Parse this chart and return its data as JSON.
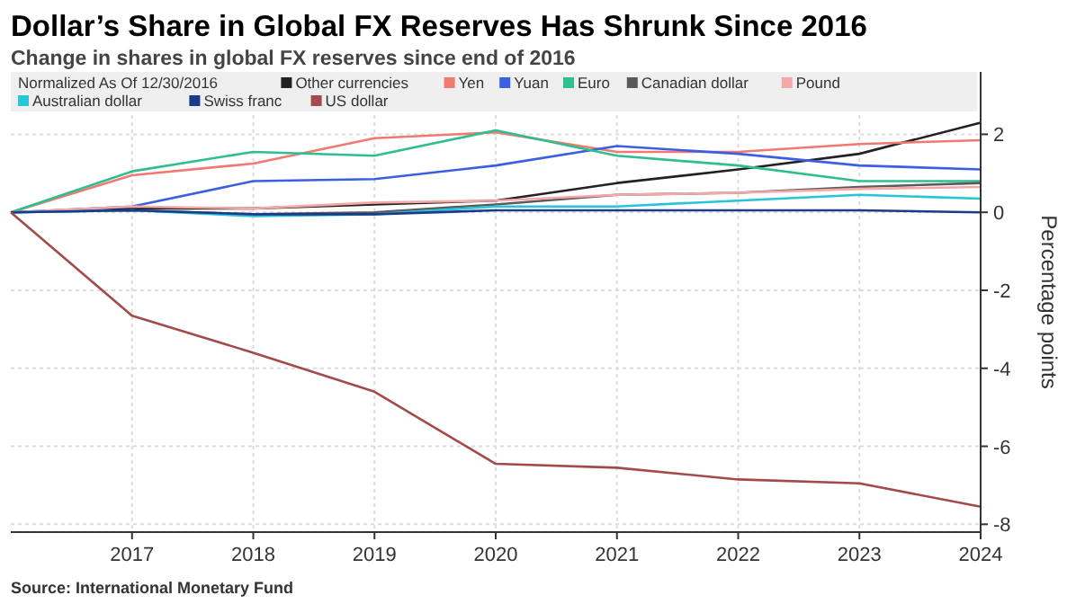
{
  "chart_data": {
    "type": "line",
    "title": "Dollar’s Share in Global FX Reserves Has Shrunk Since 2016",
    "subtitle": "Change in shares in global FX reserves since end of 2016",
    "ylabel": "Percentage points",
    "legend_title": "Normalized As Of 12/30/2016",
    "annotations": [
      "Source: International Monetary Fund"
    ],
    "x": [
      2016,
      2017,
      2018,
      2019,
      2020,
      2021,
      2022,
      2023,
      2024
    ],
    "series": [
      {
        "name": "Other currencies",
        "color": "#222222",
        "values": [
          0,
          0.1,
          0.1,
          0.2,
          0.3,
          0.75,
          1.1,
          1.5,
          2.3
        ]
      },
      {
        "name": "Yen",
        "color": "#f07a72",
        "values": [
          0,
          0.95,
          1.25,
          1.9,
          2.05,
          1.55,
          1.55,
          1.75,
          1.85
        ]
      },
      {
        "name": "Yuan",
        "color": "#3a5fe0",
        "values": [
          0,
          0.15,
          0.8,
          0.85,
          1.2,
          1.7,
          1.5,
          1.2,
          1.1
        ]
      },
      {
        "name": "Euro",
        "color": "#2fbf8f",
        "values": [
          0,
          1.05,
          1.55,
          1.45,
          2.1,
          1.45,
          1.2,
          0.8,
          0.8
        ]
      },
      {
        "name": "Canadian dollar",
        "color": "#5a5a5a",
        "values": [
          0,
          0.05,
          -0.05,
          0,
          0.2,
          0.45,
          0.5,
          0.65,
          0.75
        ]
      },
      {
        "name": "Pound",
        "color": "#f5a8a8",
        "values": [
          0,
          0.15,
          0.1,
          0.25,
          0.3,
          0.45,
          0.5,
          0.6,
          0.65
        ]
      },
      {
        "name": "Australian dollar",
        "color": "#28c4d8",
        "values": [
          0,
          0.05,
          -0.1,
          -0.05,
          0.15,
          0.15,
          0.3,
          0.45,
          0.35
        ]
      },
      {
        "name": "Swiss franc",
        "color": "#1b3a8a",
        "values": [
          0,
          0.05,
          -0.05,
          -0.05,
          0.05,
          0.05,
          0.05,
          0.05,
          0
        ]
      },
      {
        "name": "US dollar",
        "color": "#a34a4a",
        "values": [
          0,
          -2.65,
          -3.6,
          -4.6,
          -6.45,
          -6.55,
          -6.85,
          -6.95,
          -7.55
        ]
      }
    ],
    "xlim": [
      2016,
      2024
    ],
    "xticks": [
      2017,
      2018,
      2019,
      2020,
      2021,
      2022,
      2023,
      2024
    ],
    "ylim": [
      -8.2,
      3.6
    ],
    "yticks": [
      -8,
      -6,
      -4,
      -2,
      0,
      2
    ],
    "grid": true,
    "legend": "top"
  }
}
